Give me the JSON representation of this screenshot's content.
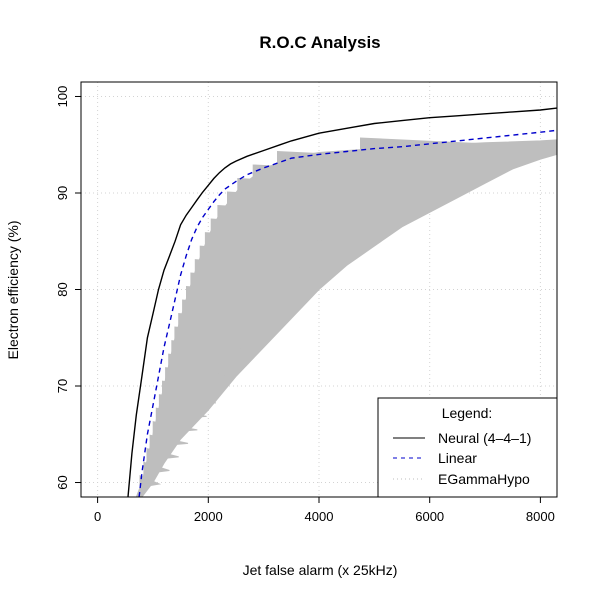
{
  "chart_data": {
    "type": "line",
    "title": "R.O.C Analysis",
    "xlabel": "Jet false alarm (x 25kHz)",
    "ylabel": "Electron efficiency (%)",
    "xlim": [
      -300,
      8300
    ],
    "ylim": [
      58.5,
      101.5
    ],
    "xticks": [
      "0",
      "2000",
      "4000",
      "6000",
      "8000"
    ],
    "yticks": [
      "60",
      "70",
      "80",
      "90",
      "100"
    ],
    "grid": true,
    "legend": {
      "title": "Legend:",
      "placement": "bottom-right",
      "entries": [
        "Neural (4–4–1)",
        "Linear",
        "EGammaHypo"
      ]
    },
    "colors": {
      "neural": "#000000",
      "linear": "#0000cc",
      "egamma": "#bebebe",
      "grid": "#d3d3d3"
    },
    "series": [
      {
        "name": "Neural (4–4–1)",
        "style": "solid",
        "x": [
          550,
          620,
          700,
          800,
          900,
          1000,
          1100,
          1200,
          1300,
          1400,
          1500,
          1600,
          1700,
          1800,
          1900,
          2000,
          2100,
          2200,
          2300,
          2400,
          2500,
          2700,
          3000,
          3300,
          3500,
          4000,
          4500,
          5000,
          5500,
          6000,
          6500,
          7000,
          7500,
          8000,
          8300
        ],
        "y": [
          58.5,
          63,
          67,
          71,
          75,
          77.5,
          80,
          82,
          83.5,
          85,
          86.7,
          87.7,
          88.5,
          89.3,
          90.1,
          90.8,
          91.5,
          92.1,
          92.6,
          93.0,
          93.3,
          93.8,
          94.4,
          95.0,
          95.4,
          96.2,
          96.7,
          97.2,
          97.5,
          97.8,
          98.0,
          98.2,
          98.4,
          98.6,
          98.8
        ]
      },
      {
        "name": "Linear",
        "style": "dashed",
        "x": [
          750,
          800,
          900,
          1000,
          1100,
          1200,
          1300,
          1400,
          1500,
          1600,
          1700,
          1800,
          1900,
          2000,
          2100,
          2200,
          2300,
          2400,
          2500,
          2700,
          3000,
          3300,
          3500,
          4000,
          4500,
          5000,
          5500,
          6000,
          6500,
          7000,
          7500,
          8000,
          8300
        ],
        "y": [
          58.5,
          61,
          65,
          68,
          71,
          74,
          76.5,
          79,
          81.5,
          83.5,
          85.2,
          86.5,
          87.5,
          88.3,
          89.1,
          89.8,
          90.4,
          90.8,
          91.2,
          91.9,
          92.6,
          93.2,
          93.6,
          94.0,
          94.3,
          94.6,
          94.8,
          95.1,
          95.4,
          95.7,
          96.0,
          96.3,
          96.5
        ]
      },
      {
        "name": "EGammaHypo",
        "style": "dotted",
        "lower_x": [
          800,
          1000,
          1200,
          1500,
          2000,
          2500,
          3000,
          3500,
          4000,
          4500,
          5000,
          5500,
          6000,
          6500,
          7000,
          7500,
          8000,
          8300
        ],
        "lower_y": [
          58.5,
          60,
          62,
          64.5,
          67.5,
          71,
          74,
          77,
          80,
          82.5,
          84.5,
          86.5,
          88,
          89.5,
          91,
          92.5,
          93.5,
          94
        ],
        "upper_x": [
          700,
          800,
          1000,
          1200,
          1400,
          1600,
          1800,
          2000,
          2200,
          2400,
          2600,
          3000,
          3500,
          4000,
          5000,
          6000,
          7000,
          8000,
          8300
        ],
        "upper_y": [
          58.5,
          60,
          65,
          70,
          75,
          79,
          82.5,
          85.5,
          87.8,
          89.3,
          90.8,
          92.5,
          93.7,
          94.2,
          94.6,
          94.9,
          95.2,
          95.4,
          95.5
        ]
      }
    ]
  }
}
